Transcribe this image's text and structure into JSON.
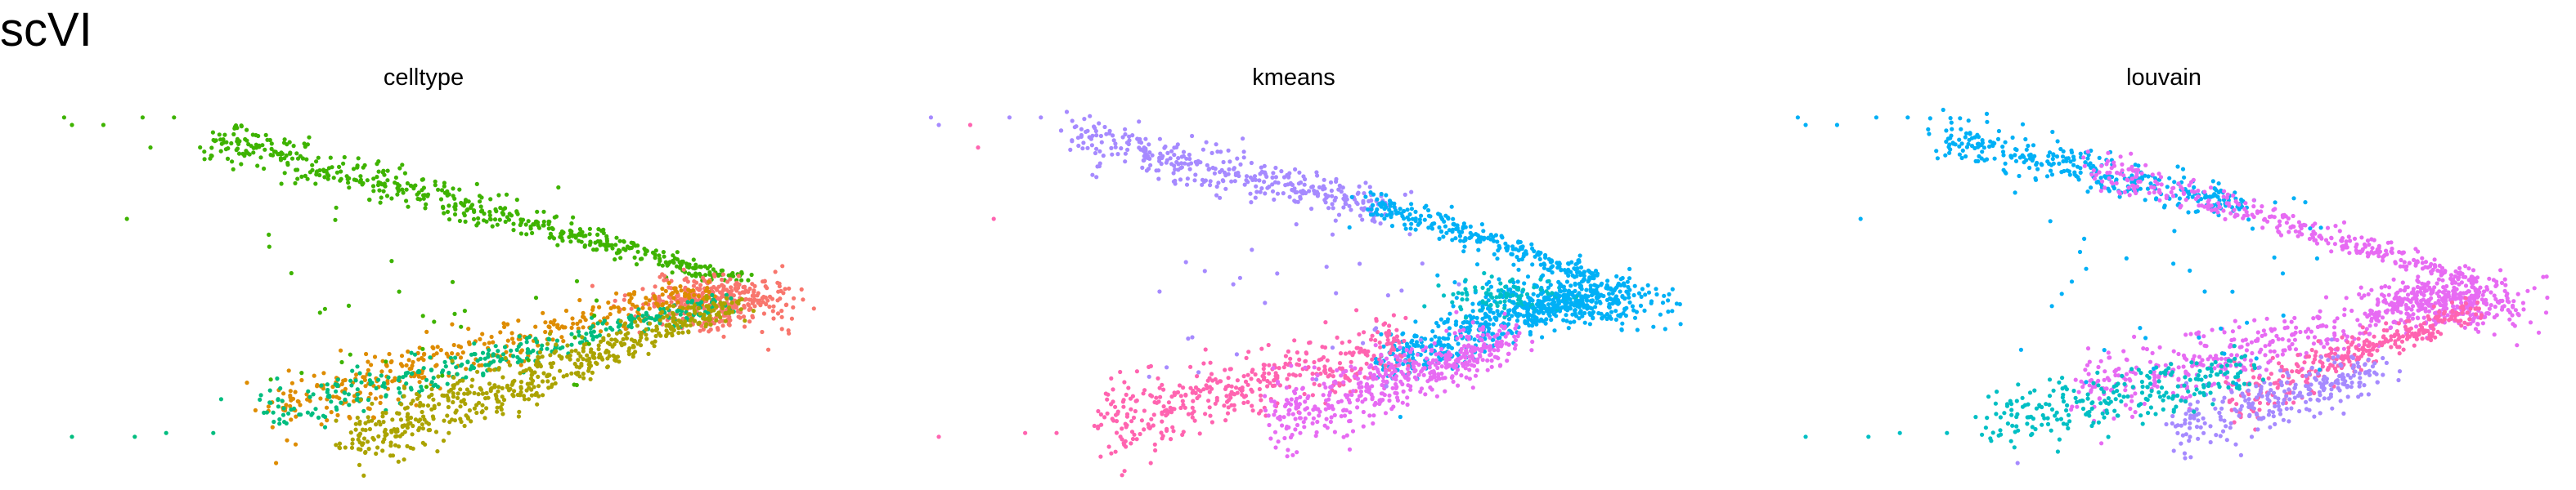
{
  "figure": {
    "title": "scVI"
  },
  "colors": {
    "green": "#3EB300",
    "orange": "#DE8C00",
    "teal": "#00BD7F",
    "olive": "#ABA300",
    "salmon": "#F8766D",
    "lavender": "#A68AFF",
    "cyan": "#00B0F6",
    "pink": "#FF64B0",
    "magenta": "#E76BF3",
    "turquoise": "#00BFC4"
  },
  "chart_data": [
    {
      "type": "scatter",
      "title": "celltype",
      "xlabel": "",
      "ylabel": "",
      "axes": "none",
      "grid": false,
      "legend": "none",
      "xlim": [
        0,
        1
      ],
      "ylim": [
        0,
        1
      ],
      "clusters": [
        {
          "color_key": "green",
          "n": 520,
          "shape": "band",
          "from": [
            0.22,
            0.92
          ],
          "to": [
            0.9,
            0.54
          ],
          "width_start": 0.07,
          "width_end": 0.02
        },
        {
          "color_key": "salmon",
          "n": 380,
          "shape": "blob",
          "center": [
            0.87,
            0.48
          ],
          "spread": [
            0.05,
            0.035
          ]
        },
        {
          "color_key": "orange",
          "n": 360,
          "shape": "band",
          "from": [
            0.3,
            0.19
          ],
          "to": [
            0.86,
            0.52
          ],
          "width_start": 0.1,
          "width_end": 0.04
        },
        {
          "color_key": "teal",
          "n": 320,
          "shape": "band",
          "from": [
            0.3,
            0.18
          ],
          "to": [
            0.88,
            0.48
          ],
          "width_start": 0.07,
          "width_end": 0.03
        },
        {
          "color_key": "olive",
          "n": 560,
          "shape": "band",
          "from": [
            0.4,
            0.1
          ],
          "to": [
            0.9,
            0.48
          ],
          "width_start": 0.1,
          "width_end": 0.03
        },
        {
          "color_key": "green",
          "n": 45,
          "shape": "scatter",
          "box": [
            0.3,
            0.25,
            0.72,
            0.8
          ]
        }
      ],
      "outliers": [
        {
          "x": 0.04,
          "y": 0.97,
          "c": "green"
        },
        {
          "x": 0.05,
          "y": 0.95,
          "c": "green"
        },
        {
          "x": 0.09,
          "y": 0.95,
          "c": "green"
        },
        {
          "x": 0.14,
          "y": 0.97,
          "c": "green"
        },
        {
          "x": 0.18,
          "y": 0.97,
          "c": "green"
        },
        {
          "x": 0.15,
          "y": 0.89,
          "c": "green"
        },
        {
          "x": 0.12,
          "y": 0.7,
          "c": "green"
        },
        {
          "x": 0.05,
          "y": 0.12,
          "c": "teal"
        },
        {
          "x": 0.13,
          "y": 0.12,
          "c": "teal"
        },
        {
          "x": 0.17,
          "y": 0.13,
          "c": "teal"
        },
        {
          "x": 0.23,
          "y": 0.13,
          "c": "teal"
        },
        {
          "x": 0.24,
          "y": 0.22,
          "c": "teal"
        },
        {
          "x": 0.31,
          "y": 0.05,
          "c": "orange"
        }
      ]
    },
    {
      "type": "scatter",
      "title": "kmeans",
      "xlabel": "",
      "ylabel": "",
      "axes": "none",
      "grid": false,
      "legend": "none",
      "xlim": [
        0,
        1
      ],
      "ylim": [
        0,
        1
      ],
      "clusters": [
        {
          "color_key": "lavender",
          "n": 360,
          "shape": "band",
          "from": [
            0.22,
            0.92
          ],
          "to": [
            0.62,
            0.73
          ],
          "width_start": 0.07,
          "width_end": 0.05
        },
        {
          "color_key": "cyan",
          "n": 260,
          "shape": "band",
          "from": [
            0.6,
            0.74
          ],
          "to": [
            0.9,
            0.54
          ],
          "width_start": 0.05,
          "width_end": 0.02
        },
        {
          "color_key": "cyan",
          "n": 360,
          "shape": "blob",
          "center": [
            0.86,
            0.48
          ],
          "spread": [
            0.06,
            0.035
          ]
        },
        {
          "color_key": "turquoise",
          "n": 90,
          "shape": "blob",
          "center": [
            0.77,
            0.49
          ],
          "spread": [
            0.04,
            0.025
          ]
        },
        {
          "color_key": "cyan",
          "n": 380,
          "shape": "band",
          "from": [
            0.62,
            0.32
          ],
          "to": [
            0.88,
            0.5
          ],
          "width_start": 0.08,
          "width_end": 0.04
        },
        {
          "color_key": "pink",
          "n": 420,
          "shape": "band",
          "from": [
            0.26,
            0.16
          ],
          "to": [
            0.64,
            0.36
          ],
          "width_start": 0.12,
          "width_end": 0.08
        },
        {
          "color_key": "magenta",
          "n": 480,
          "shape": "band",
          "from": [
            0.48,
            0.16
          ],
          "to": [
            0.78,
            0.38
          ],
          "width_start": 0.12,
          "width_end": 0.06
        },
        {
          "color_key": "lavender",
          "n": 40,
          "shape": "scatter",
          "box": [
            0.3,
            0.25,
            0.72,
            0.8
          ]
        }
      ],
      "outliers": [
        {
          "x": 0.04,
          "y": 0.97,
          "c": "lavender"
        },
        {
          "x": 0.05,
          "y": 0.95,
          "c": "lavender"
        },
        {
          "x": 0.09,
          "y": 0.95,
          "c": "pink"
        },
        {
          "x": 0.14,
          "y": 0.97,
          "c": "lavender"
        },
        {
          "x": 0.18,
          "y": 0.97,
          "c": "lavender"
        },
        {
          "x": 0.1,
          "y": 0.89,
          "c": "pink"
        },
        {
          "x": 0.12,
          "y": 0.7,
          "c": "pink"
        },
        {
          "x": 0.05,
          "y": 0.12,
          "c": "pink"
        },
        {
          "x": 0.16,
          "y": 0.13,
          "c": "pink"
        },
        {
          "x": 0.2,
          "y": 0.13,
          "c": "pink"
        },
        {
          "x": 0.32,
          "y": 0.05,
          "c": "pink"
        }
      ]
    },
    {
      "type": "scatter",
      "title": "louvain",
      "xlabel": "",
      "ylabel": "",
      "axes": "none",
      "grid": false,
      "legend": "none",
      "xlim": [
        0,
        1
      ],
      "ylim": [
        0,
        1
      ],
      "clusters": [
        {
          "color_key": "cyan",
          "n": 330,
          "shape": "band",
          "from": [
            0.22,
            0.92
          ],
          "to": [
            0.6,
            0.74
          ],
          "width_start": 0.07,
          "width_end": 0.05
        },
        {
          "color_key": "magenta",
          "n": 330,
          "shape": "band",
          "from": [
            0.4,
            0.85
          ],
          "to": [
            0.9,
            0.54
          ],
          "width_start": 0.06,
          "width_end": 0.02
        },
        {
          "color_key": "magenta",
          "n": 360,
          "shape": "blob",
          "center": [
            0.87,
            0.48
          ],
          "spread": [
            0.05,
            0.035
          ]
        },
        {
          "color_key": "magenta",
          "n": 380,
          "shape": "band",
          "from": [
            0.4,
            0.24
          ],
          "to": [
            0.82,
            0.46
          ],
          "width_start": 0.12,
          "width_end": 0.05
        },
        {
          "color_key": "pink",
          "n": 320,
          "shape": "band",
          "from": [
            0.6,
            0.22
          ],
          "to": [
            0.9,
            0.46
          ],
          "width_start": 0.08,
          "width_end": 0.03
        },
        {
          "color_key": "lavender",
          "n": 260,
          "shape": "band",
          "from": [
            0.52,
            0.14
          ],
          "to": [
            0.78,
            0.3
          ],
          "width_start": 0.1,
          "width_end": 0.06
        },
        {
          "color_key": "turquoise",
          "n": 250,
          "shape": "band",
          "from": [
            0.28,
            0.15
          ],
          "to": [
            0.62,
            0.3
          ],
          "width_start": 0.09,
          "width_end": 0.07
        },
        {
          "color_key": "cyan",
          "n": 40,
          "shape": "scatter",
          "box": [
            0.3,
            0.25,
            0.72,
            0.8
          ]
        }
      ],
      "outliers": [
        {
          "x": 0.04,
          "y": 0.97,
          "c": "cyan"
        },
        {
          "x": 0.05,
          "y": 0.95,
          "c": "cyan"
        },
        {
          "x": 0.09,
          "y": 0.95,
          "c": "cyan"
        },
        {
          "x": 0.14,
          "y": 0.97,
          "c": "cyan"
        },
        {
          "x": 0.18,
          "y": 0.97,
          "c": "cyan"
        },
        {
          "x": 0.12,
          "y": 0.7,
          "c": "cyan"
        },
        {
          "x": 0.05,
          "y": 0.12,
          "c": "turquoise"
        },
        {
          "x": 0.13,
          "y": 0.12,
          "c": "turquoise"
        },
        {
          "x": 0.17,
          "y": 0.13,
          "c": "turquoise"
        },
        {
          "x": 0.23,
          "y": 0.13,
          "c": "turquoise"
        },
        {
          "x": 0.32,
          "y": 0.05,
          "c": "lavender"
        }
      ]
    }
  ]
}
